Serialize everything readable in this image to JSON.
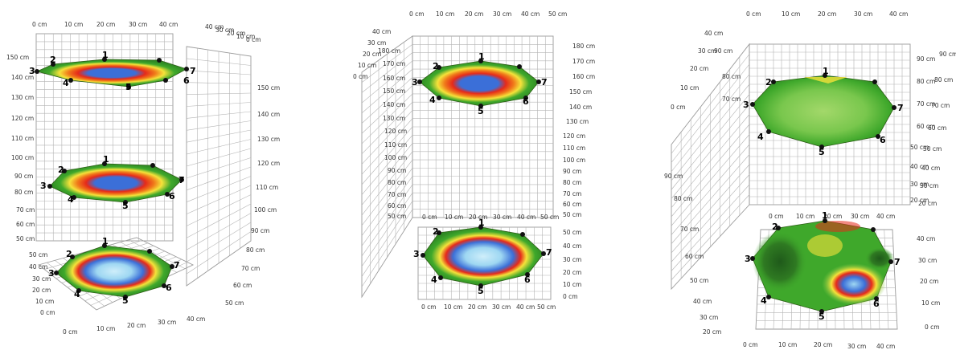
{
  "colors": {
    "blue": "#3b6fd8",
    "light_blue": "#9ed7f2",
    "red": "#e62a1a",
    "orange": "#f07a1a",
    "yellow": "#f5e23a",
    "green": "#3fa82b",
    "light_green": "#79c74d",
    "dark_green": "#1f5a1a",
    "grid": "#b4b4b4",
    "marker": "#111111"
  },
  "chart_data": [
    {
      "type": "surface",
      "point_labels": [
        "1",
        "2",
        "3",
        "4",
        "5",
        "6",
        "7"
      ],
      "height_ticks": [
        "150 cm",
        "140 cm",
        "130 cm",
        "120 cm",
        "110 cm",
        "100 cm",
        "90 cm",
        "80 cm",
        "70 cm",
        "60 cm",
        "50 cm"
      ],
      "depth_ticks": [
        "50 cm",
        "40 cm",
        "30 cm",
        "20 cm",
        "10 cm",
        "0 cm"
      ],
      "x_ticks_top": [
        "0 cm",
        "10 cm",
        "20 cm",
        "30 cm",
        "40 cm"
      ],
      "x_ticks_bottom": [
        "0 cm",
        "10 cm",
        "20 cm",
        "30 cm",
        "40 cm"
      ],
      "z_ticks": [
        "40 cm",
        "30 cm",
        "20 cm",
        "10 cm",
        "0 cm"
      ],
      "side_wall_ticks": [
        "40 cm",
        "30 cm",
        "20 cm",
        "10 cm",
        "0 cm"
      ],
      "side_ticks": [
        "150 cm",
        "140 cm",
        "130 cm",
        "120 cm",
        "110 cm",
        "100 cm",
        "90 cm",
        "80 cm",
        "70 cm",
        "60 cm",
        "50 cm"
      ],
      "layers": [
        {
          "level": "145 cm",
          "peak": "blue"
        },
        {
          "level": "90 cm",
          "peak": "blue"
        },
        {
          "level": "floor",
          "peak": "light_blue"
        }
      ]
    },
    {
      "type": "surface",
      "point_labels": [
        "1",
        "2",
        "3",
        "4",
        "5",
        "6",
        "7"
      ],
      "x_ticks_top": [
        "0 cm",
        "10 cm",
        "20 cm",
        "30 cm",
        "40 cm",
        "50 cm"
      ],
      "height_ticks_left": [
        "40 cm",
        "30 cm",
        "20 cm",
        "10 cm",
        "0 cm",
        "180 cm",
        "170 cm",
        "160 cm",
        "150 cm",
        "140 cm",
        "130 cm",
        "120 cm",
        "110 cm",
        "100 cm",
        "90 cm",
        "80 cm",
        "70 cm",
        "60 cm",
        "50 cm"
      ],
      "height_ticks_right": [
        "180 cm",
        "170 cm",
        "160 cm",
        "150 cm",
        "140 cm",
        "130 cm",
        "120 cm",
        "110 cm",
        "100 cm",
        "90 cm",
        "80 cm",
        "70 cm",
        "60 cm",
        "50 cm"
      ],
      "mid_x_ticks": [
        "0 cm",
        "10 cm",
        "20 cm",
        "30 cm",
        "40 cm",
        "50 cm"
      ],
      "bottom_right_ticks": [
        "50 cm",
        "40 cm",
        "30 cm",
        "20 cm",
        "10 cm",
        "0 cm"
      ],
      "bottom_x_ticks": [
        "0 cm",
        "10 cm",
        "20 cm",
        "30 cm",
        "40 cm",
        "50 cm"
      ],
      "layers": [
        {
          "level": "160 cm",
          "peak": "blue"
        },
        {
          "level": "floor",
          "peak": "light_blue"
        }
      ]
    },
    {
      "type": "surface",
      "point_labels": [
        "1",
        "2",
        "3",
        "4",
        "5",
        "6",
        "7"
      ],
      "x_ticks_top": [
        "0 cm",
        "10 cm",
        "20 cm",
        "30 cm",
        "40 cm"
      ],
      "left_ticks": [
        "40 cm",
        "30 cm",
        "90 cm",
        "20 cm",
        "80 cm",
        "10 cm",
        "70 cm",
        "0 cm"
      ],
      "right_ticks": [
        "90 cm",
        "80 cm",
        "70 cm",
        "60 cm",
        "50 cm",
        "40 cm",
        "30 cm",
        "20 cm"
      ],
      "far_right_ticks": [
        "90 cm",
        "80 cm",
        "70 cm",
        "60 cm",
        "50 cm",
        "40 cm",
        "30 cm",
        "20 cm"
      ],
      "mid_x_ticks": [
        "0 cm",
        "10 cm",
        "20 cm",
        "30 cm",
        "40 cm"
      ],
      "bottom_right_ticks": [
        "40 cm",
        "30 cm",
        "20 cm",
        "10 cm",
        "0 cm"
      ],
      "bottom_left_ticks": [
        "90 cm",
        "80 cm",
        "70 cm",
        "60 cm",
        "50 cm",
        "40 cm",
        "30 cm",
        "20 cm"
      ],
      "bottom_x_ticks": [
        "0 cm",
        "10 cm",
        "20 cm",
        "30 cm",
        "40 cm"
      ],
      "layers": [
        {
          "level": "70 cm",
          "peak": "light_green"
        },
        {
          "level": "floor",
          "peak": "blue"
        }
      ]
    }
  ]
}
